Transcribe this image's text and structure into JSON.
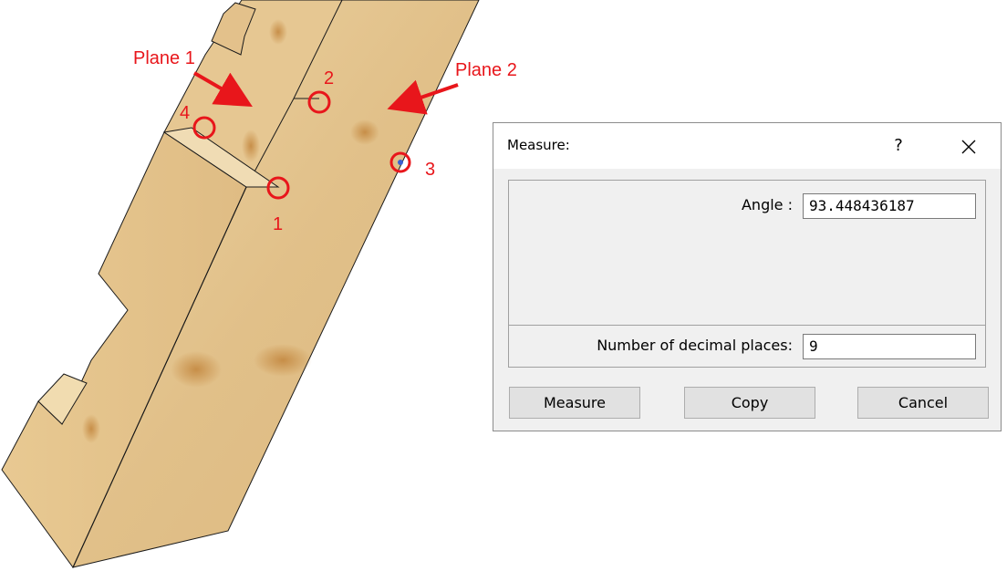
{
  "annotations": {
    "plane1": "Plane 1",
    "plane2": "Plane 2",
    "point1": "1",
    "point2": "2",
    "point3": "3",
    "point4": "4"
  },
  "dialog": {
    "title": "Measure:",
    "help_icon": "?",
    "close_icon": "close-x-icon",
    "angle_label": "Angle :",
    "angle_value": "93.448436187",
    "decimals_label": "Number of decimal places:",
    "decimals_value": "9",
    "buttons": {
      "measure": "Measure",
      "copy": "Copy",
      "cancel": "Cancel"
    }
  },
  "colors": {
    "annotation": "#e8161b",
    "wood": "#e3c38c",
    "dialog_bg": "#f0f0f0"
  }
}
